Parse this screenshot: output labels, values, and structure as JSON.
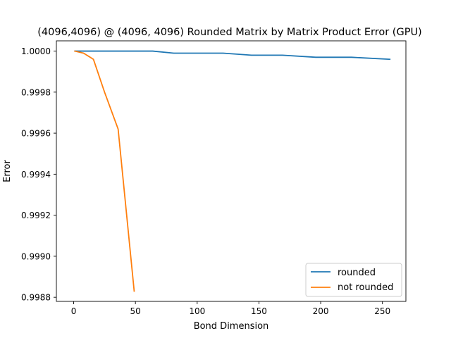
{
  "chart_data": {
    "type": "line",
    "title": "(4096,4096) @ (4096, 4096) Rounded Matrix by Matrix Product Error (GPU)",
    "xlabel": "Bond Dimension",
    "ylabel": "Error",
    "xlim": [
      -14,
      269
    ],
    "ylim": [
      0.99878,
      1.00005
    ],
    "xticks": [
      0,
      50,
      100,
      150,
      200,
      250
    ],
    "yticks": [
      0.9988,
      0.999,
      0.9992,
      0.9994,
      0.9996,
      0.9998,
      1.0
    ],
    "ytick_labels": [
      "0.9988",
      "0.9990",
      "0.9992",
      "0.9994",
      "0.9996",
      "0.9998",
      "1.0000"
    ],
    "grid": false,
    "legend_position": "lower-right",
    "series": [
      {
        "name": "rounded",
        "color": "#1f77b4",
        "x": [
          1,
          8,
          16,
          25,
          36,
          49,
          64,
          81,
          100,
          121,
          144,
          169,
          196,
          225,
          256
        ],
        "y": [
          1.0,
          1.0,
          1.0,
          1.0,
          1.0,
          1.0,
          1.0,
          0.99999,
          0.99999,
          0.99999,
          0.99998,
          0.99998,
          0.99997,
          0.99997,
          0.99996
        ]
      },
      {
        "name": "not rounded",
        "color": "#ff7f0e",
        "x": [
          1,
          8,
          16,
          25,
          36,
          49
        ],
        "y": [
          1.0,
          0.99999,
          0.99996,
          0.9998,
          0.99962,
          0.99883
        ]
      }
    ]
  }
}
